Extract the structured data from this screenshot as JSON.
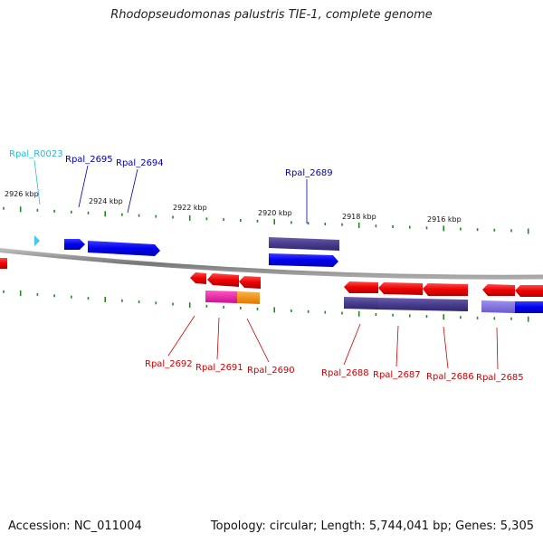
{
  "title": "Rhodopseudomonas palustris TIE-1, complete genome",
  "footer": {
    "accession": "Accession: NC_011004",
    "topology": "Topology: circular; Length: 5,744,041 bp; Genes: 5,305"
  },
  "colors": {
    "forward_label": "#0000aa",
    "reverse_label": "#cc0000",
    "rna_label": "#22bbdd",
    "tick": "#228822",
    "backbone": "#888888"
  },
  "scale_labels": [
    "2926 kbp",
    "2924 kbp",
    "2922 kbp",
    "2920 kbp",
    "2918 kbp",
    "2916 kbp"
  ],
  "forward_genes": [
    "Rpal_R0023",
    "Rpal_2695",
    "Rpal_2694",
    "Rpal_2689"
  ],
  "reverse_genes": [
    "Rpal_2692",
    "Rpal_2691",
    "Rpal_2690",
    "Rpal_2688",
    "Rpal_2687",
    "Rpal_2686",
    "Rpal_2685"
  ]
}
